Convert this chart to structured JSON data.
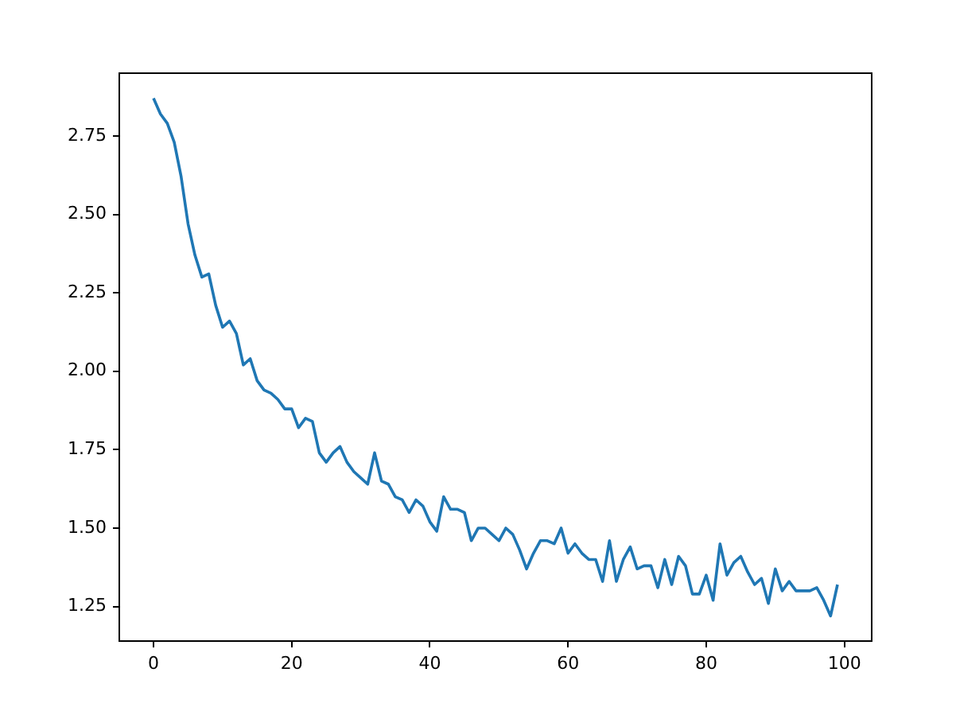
{
  "chart_data": {
    "type": "line",
    "x": [
      0,
      1,
      2,
      3,
      4,
      5,
      6,
      7,
      8,
      9,
      10,
      11,
      12,
      13,
      14,
      15,
      16,
      17,
      18,
      19,
      20,
      21,
      22,
      23,
      24,
      25,
      26,
      27,
      28,
      29,
      30,
      31,
      32,
      33,
      34,
      35,
      36,
      37,
      38,
      39,
      40,
      41,
      42,
      43,
      44,
      45,
      46,
      47,
      48,
      49,
      50,
      51,
      52,
      53,
      54,
      55,
      56,
      57,
      58,
      59,
      60,
      61,
      62,
      63,
      64,
      65,
      66,
      67,
      68,
      69,
      70,
      71,
      72,
      73,
      74,
      75,
      76,
      77,
      78,
      79,
      80,
      81,
      82,
      83,
      84,
      85,
      86,
      87,
      88,
      89,
      90,
      91,
      92,
      93,
      94,
      95,
      96,
      97,
      98,
      99
    ],
    "series": [
      {
        "color": "#1f77b4",
        "values": [
          2.87,
          2.82,
          2.79,
          2.73,
          2.62,
          2.47,
          2.37,
          2.3,
          2.31,
          2.21,
          2.14,
          2.16,
          2.12,
          2.02,
          2.04,
          1.97,
          1.94,
          1.93,
          1.91,
          1.88,
          1.88,
          1.82,
          1.85,
          1.84,
          1.74,
          1.71,
          1.74,
          1.76,
          1.71,
          1.68,
          1.66,
          1.64,
          1.74,
          1.65,
          1.64,
          1.6,
          1.59,
          1.55,
          1.59,
          1.57,
          1.52,
          1.49,
          1.6,
          1.56,
          1.56,
          1.55,
          1.46,
          1.5,
          1.5,
          1.48,
          1.46,
          1.5,
          1.48,
          1.43,
          1.37,
          1.42,
          1.46,
          1.46,
          1.45,
          1.5,
          1.42,
          1.45,
          1.42,
          1.4,
          1.4,
          1.33,
          1.46,
          1.33,
          1.4,
          1.44,
          1.37,
          1.38,
          1.38,
          1.31,
          1.4,
          1.32,
          1.41,
          1.38,
          1.29,
          1.29,
          1.35,
          1.27,
          1.45,
          1.35,
          1.39,
          1.41,
          1.36,
          1.32,
          1.34,
          1.26,
          1.37,
          1.3,
          1.33,
          1.3,
          1.3,
          1.3,
          1.31,
          1.27,
          1.22,
          1.32
        ]
      }
    ],
    "xlim": [
      -4.95,
      103.95
    ],
    "xticks": [
      0,
      20,
      40,
      60,
      80,
      100
    ],
    "ylim": [
      1.14,
      2.95
    ],
    "yticks": [
      {
        "value": 1.25,
        "label": "1.25"
      },
      {
        "value": 1.5,
        "label": "1.50"
      },
      {
        "value": 1.75,
        "label": "1.75"
      },
      {
        "value": 2.0,
        "label": "2.00"
      },
      {
        "value": 2.25,
        "label": "2.25"
      },
      {
        "value": 2.5,
        "label": "2.50"
      },
      {
        "value": 2.75,
        "label": "2.75"
      }
    ],
    "grid": false,
    "legend": false,
    "marker": "none",
    "line_style": "solid"
  }
}
